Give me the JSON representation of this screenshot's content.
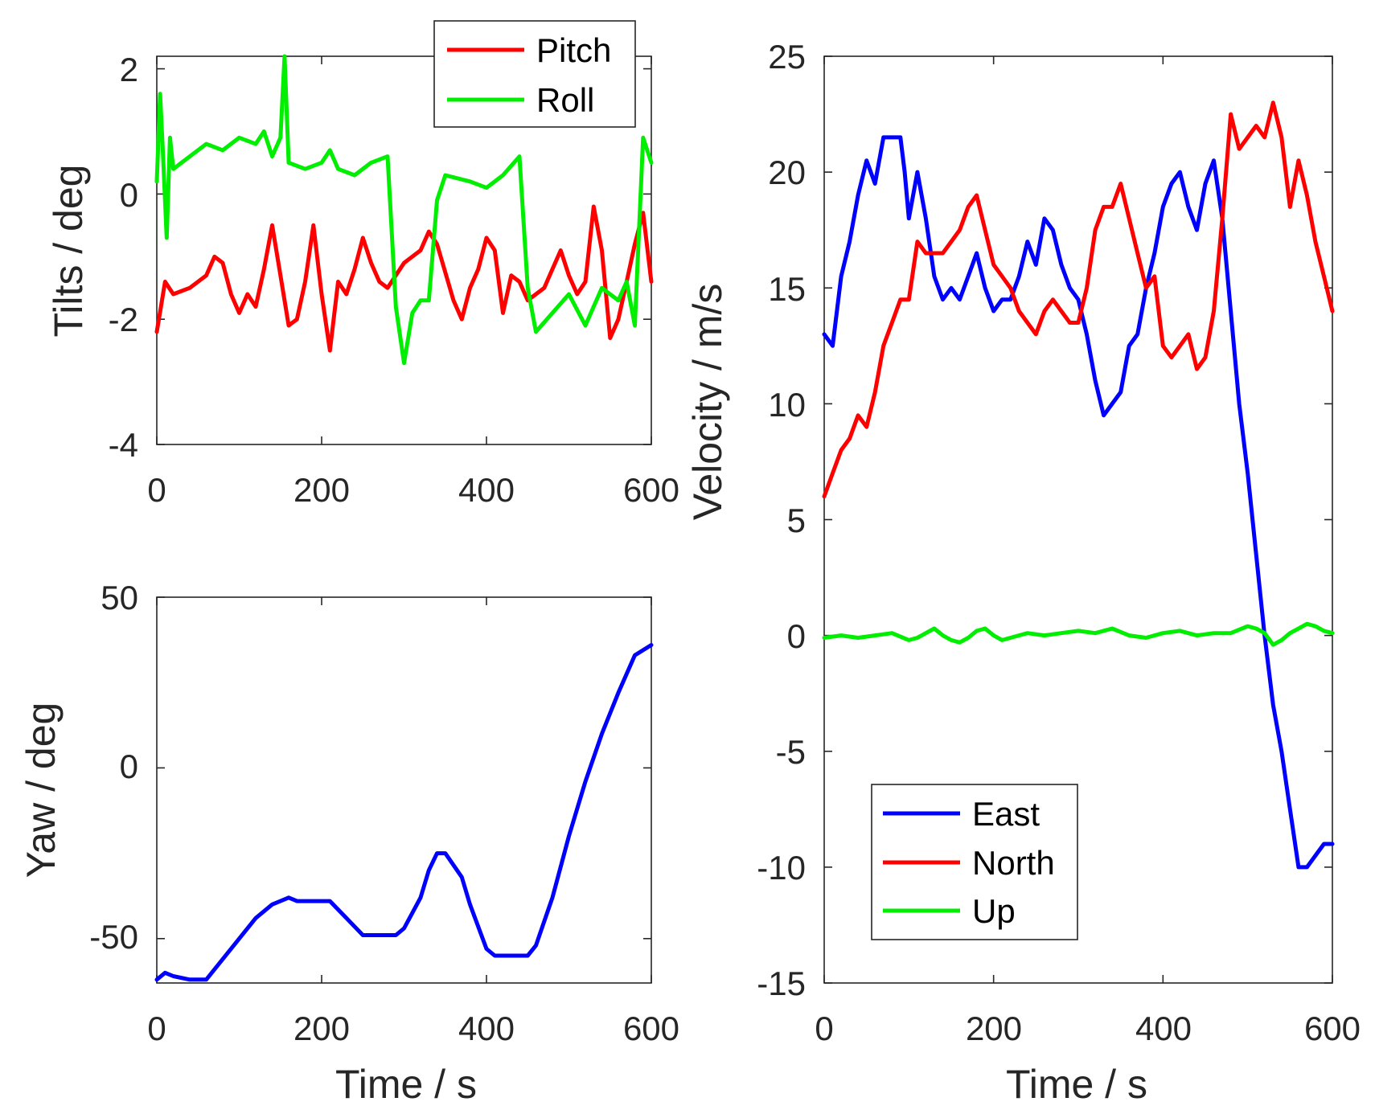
{
  "colors": {
    "red": "#ff0000",
    "green": "#00ee00",
    "blue": "#0000ff",
    "axis": "#262626"
  },
  "chart_data": [
    {
      "id": "tilts",
      "type": "line",
      "title": "",
      "xlabel": "",
      "ylabel": "Tilts / deg",
      "xlim": [
        0,
        600
      ],
      "ylim": [
        -4,
        2.2
      ],
      "xticks": [
        0,
        200,
        400,
        600
      ],
      "yticks": [
        -4,
        -2,
        0,
        2
      ],
      "legend": {
        "position": "top-right"
      },
      "series": [
        {
          "name": "Pitch",
          "color": "#ff0000",
          "x": [
            0,
            10,
            20,
            40,
            60,
            70,
            80,
            90,
            100,
            110,
            120,
            130,
            140,
            150,
            160,
            170,
            180,
            190,
            200,
            210,
            220,
            230,
            240,
            250,
            260,
            270,
            280,
            300,
            320,
            330,
            340,
            360,
            370,
            380,
            390,
            400,
            410,
            420,
            430,
            440,
            450,
            460,
            470,
            480,
            490,
            500,
            510,
            520,
            530,
            540,
            550,
            560,
            570,
            580,
            590,
            600
          ],
          "values": [
            -2.2,
            -1.4,
            -1.6,
            -1.5,
            -1.3,
            -1.0,
            -1.1,
            -1.6,
            -1.9,
            -1.6,
            -1.8,
            -1.2,
            -0.5,
            -1.3,
            -2.1,
            -2.0,
            -1.4,
            -0.5,
            -1.6,
            -2.5,
            -1.4,
            -1.6,
            -1.2,
            -0.7,
            -1.1,
            -1.4,
            -1.5,
            -1.1,
            -0.9,
            -0.6,
            -0.8,
            -1.7,
            -2.0,
            -1.5,
            -1.2,
            -0.7,
            -0.9,
            -1.9,
            -1.3,
            -1.4,
            -1.7,
            -1.6,
            -1.5,
            -1.2,
            -0.9,
            -1.3,
            -1.6,
            -1.4,
            -0.2,
            -0.9,
            -2.3,
            -2.0,
            -1.4,
            -0.8,
            -0.3,
            -1.4
          ]
        },
        {
          "name": "Roll",
          "color": "#00ee00",
          "x": [
            0,
            4,
            8,
            12,
            16,
            20,
            40,
            60,
            80,
            100,
            120,
            130,
            140,
            150,
            155,
            160,
            180,
            200,
            210,
            220,
            240,
            260,
            280,
            290,
            300,
            310,
            320,
            330,
            340,
            350,
            380,
            400,
            420,
            440,
            450,
            460,
            480,
            500,
            520,
            540,
            560,
            570,
            580,
            590,
            600
          ],
          "values": [
            0.2,
            1.6,
            0.5,
            -0.7,
            0.9,
            0.4,
            0.6,
            0.8,
            0.7,
            0.9,
            0.8,
            1.0,
            0.6,
            0.9,
            2.2,
            0.5,
            0.4,
            0.5,
            0.7,
            0.4,
            0.3,
            0.5,
            0.6,
            -1.8,
            -2.7,
            -1.9,
            -1.7,
            -1.7,
            -0.1,
            0.3,
            0.2,
            0.1,
            0.3,
            0.6,
            -1.5,
            -2.2,
            -1.9,
            -1.6,
            -2.1,
            -1.5,
            -1.7,
            -1.4,
            -2.1,
            0.9,
            0.5
          ]
        }
      ]
    },
    {
      "id": "yaw",
      "type": "line",
      "title": "",
      "xlabel": "Time / s",
      "ylabel": "Yaw / deg",
      "xlim": [
        0,
        600
      ],
      "ylim": [
        -63,
        50
      ],
      "xticks": [
        0,
        200,
        400,
        600
      ],
      "yticks": [
        -50,
        0,
        50
      ],
      "series": [
        {
          "name": "Yaw",
          "color": "#0000ff",
          "x": [
            0,
            10,
            20,
            40,
            60,
            80,
            100,
            120,
            140,
            150,
            160,
            170,
            200,
            210,
            230,
            250,
            260,
            290,
            300,
            320,
            330,
            340,
            350,
            370,
            380,
            400,
            410,
            450,
            460,
            480,
            500,
            520,
            540,
            560,
            580,
            600
          ],
          "values": [
            -62,
            -60,
            -61,
            -62,
            -62,
            -56,
            -50,
            -44,
            -40,
            -39,
            -38,
            -39,
            -39,
            -39,
            -44,
            -49,
            -49,
            -49,
            -47,
            -38,
            -30,
            -25,
            -25,
            -32,
            -40,
            -53,
            -55,
            -55,
            -52,
            -38,
            -20,
            -4,
            10,
            22,
            33,
            36
          ]
        }
      ]
    },
    {
      "id": "velocity",
      "type": "line",
      "title": "",
      "xlabel": "Time / s",
      "ylabel": "Velocity / m/s",
      "xlim": [
        0,
        600
      ],
      "ylim": [
        -15,
        25
      ],
      "xticks": [
        0,
        200,
        400,
        600
      ],
      "yticks": [
        -15,
        -10,
        -5,
        0,
        5,
        10,
        15,
        20,
        25
      ],
      "legend": {
        "position": "bottom-left"
      },
      "series": [
        {
          "name": "East",
          "color": "#0000ff",
          "x": [
            0,
            10,
            20,
            30,
            40,
            50,
            60,
            70,
            80,
            90,
            95,
            100,
            110,
            120,
            130,
            140,
            150,
            160,
            170,
            180,
            190,
            200,
            210,
            220,
            230,
            240,
            250,
            260,
            270,
            280,
            290,
            300,
            310,
            320,
            330,
            340,
            350,
            360,
            370,
            380,
            390,
            400,
            410,
            420,
            430,
            440,
            450,
            460,
            470,
            480,
            490,
            500,
            510,
            520,
            530,
            540,
            550,
            560,
            570,
            580,
            590,
            600
          ],
          "values": [
            13,
            12.5,
            15.5,
            17,
            19,
            20.5,
            19.5,
            21.5,
            21.5,
            21.5,
            20,
            18,
            20,
            18,
            15.5,
            14.5,
            15,
            14.5,
            15.5,
            16.5,
            15,
            14,
            14.5,
            14.5,
            15.5,
            17,
            16,
            18,
            17.5,
            16,
            15,
            14.5,
            13,
            11,
            9.5,
            10,
            10.5,
            12.5,
            13,
            15,
            16.5,
            18.5,
            19.5,
            20,
            18.5,
            17.5,
            19.5,
            20.5,
            18,
            14,
            10,
            7,
            3.5,
            0,
            -3,
            -5,
            -7.5,
            -10,
            -10,
            -9.5,
            -9,
            -9
          ]
        },
        {
          "name": "North",
          "color": "#ff0000",
          "x": [
            0,
            10,
            20,
            30,
            40,
            50,
            60,
            70,
            80,
            90,
            100,
            110,
            120,
            130,
            140,
            150,
            160,
            170,
            180,
            190,
            200,
            210,
            220,
            230,
            240,
            250,
            260,
            270,
            280,
            290,
            300,
            310,
            320,
            330,
            340,
            350,
            360,
            370,
            380,
            390,
            400,
            410,
            420,
            430,
            440,
            450,
            460,
            470,
            480,
            490,
            500,
            510,
            520,
            530,
            540,
            550,
            560,
            570,
            580,
            590,
            600
          ],
          "values": [
            6,
            7,
            8,
            8.5,
            9.5,
            9,
            10.5,
            12.5,
            13.5,
            14.5,
            14.5,
            17,
            16.5,
            16.5,
            16.5,
            17,
            17.5,
            18.5,
            19,
            17.5,
            16,
            15.5,
            15,
            14,
            13.5,
            13,
            14,
            14.5,
            14,
            13.5,
            13.5,
            15,
            17.5,
            18.5,
            18.5,
            19.5,
            18,
            16.5,
            15,
            15.5,
            12.5,
            12,
            12.5,
            13,
            11.5,
            12,
            14,
            18,
            22.5,
            21,
            21.5,
            22,
            21.5,
            23,
            21.5,
            18.5,
            20.5,
            19,
            17,
            15.5,
            14
          ]
        },
        {
          "name": "Up",
          "color": "#00ee00",
          "x": [
            0,
            20,
            40,
            60,
            80,
            100,
            110,
            120,
            130,
            140,
            150,
            160,
            170,
            180,
            190,
            200,
            210,
            220,
            240,
            260,
            280,
            300,
            320,
            340,
            360,
            380,
            400,
            420,
            440,
            460,
            480,
            500,
            510,
            520,
            530,
            540,
            550,
            560,
            570,
            580,
            590,
            600
          ],
          "values": [
            -0.1,
            0,
            -0.1,
            0,
            0.1,
            -0.2,
            -0.1,
            0.1,
            0.3,
            0,
            -0.2,
            -0.3,
            -0.1,
            0.2,
            0.3,
            0,
            -0.2,
            -0.1,
            0.1,
            0,
            0.1,
            0.2,
            0.1,
            0.3,
            0,
            -0.1,
            0.1,
            0.2,
            0,
            0.1,
            0.1,
            0.4,
            0.3,
            0.1,
            -0.4,
            -0.2,
            0.1,
            0.3,
            0.5,
            0.4,
            0.2,
            0.1
          ]
        }
      ]
    }
  ]
}
